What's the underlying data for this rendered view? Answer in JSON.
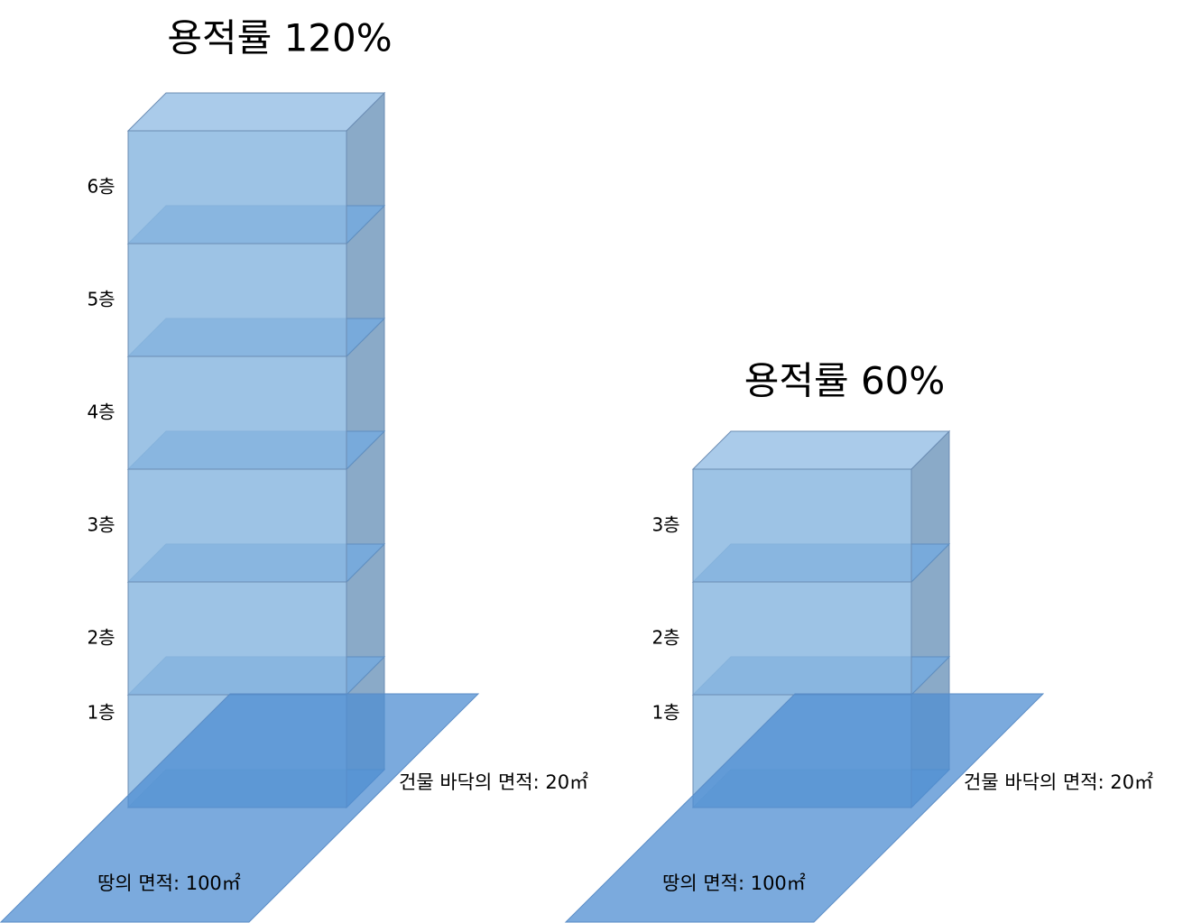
{
  "panels": [
    {
      "title": "용적률 120%",
      "floors": [
        "1층",
        "2층",
        "3층",
        "4층",
        "5층",
        "6층"
      ],
      "building_area": "건물 바닥의 면적: 20㎡",
      "land_area": "땅의 면적: 100㎡"
    },
    {
      "title": "용적률 60%",
      "floors": [
        "1층",
        "2층",
        "3층"
      ],
      "building_area": "건물 바닥의 면적: 20㎡",
      "land_area": "땅의 면적: 100㎡"
    }
  ]
}
